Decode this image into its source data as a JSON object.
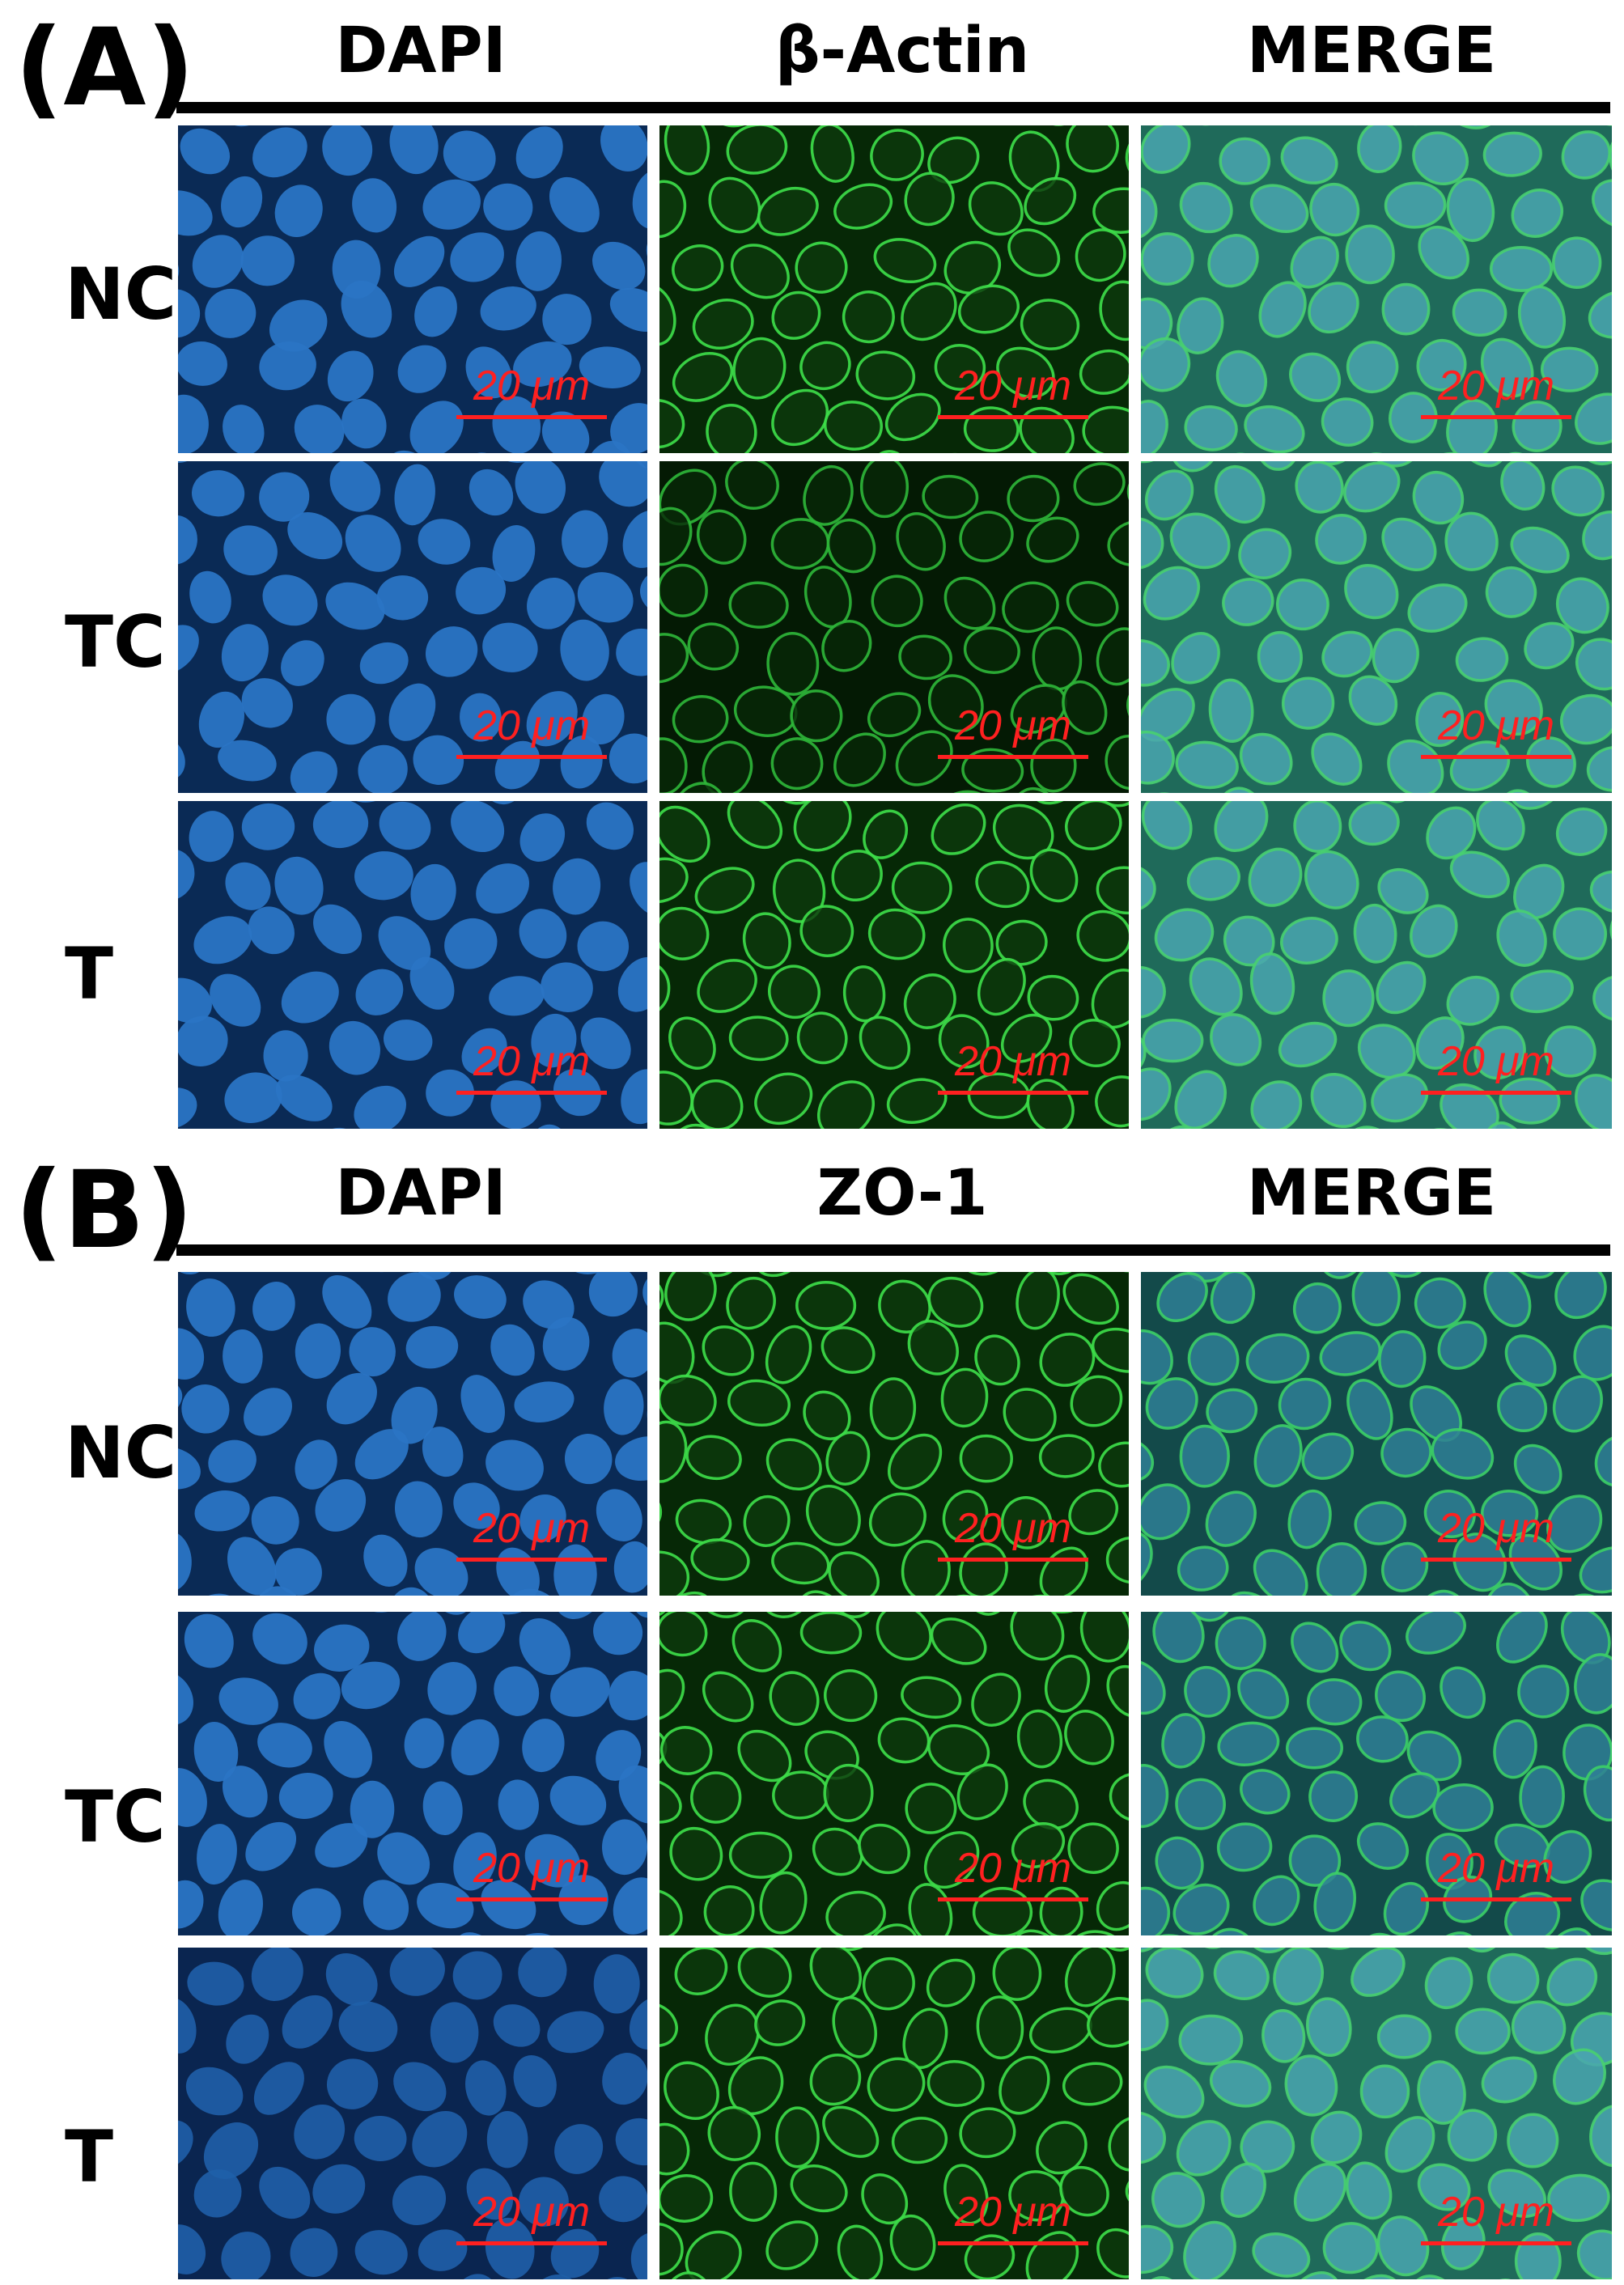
{
  "colors": {
    "dapi": "#1e5fa8",
    "green": "#20c030",
    "merge": "#3a9a8a",
    "scale": "#ff2020"
  },
  "panels": [
    {
      "letter": "(A)",
      "columns": [
        "DAPI",
        "β-Actin",
        "MERGE"
      ],
      "rows": [
        "NC",
        "TC",
        "T"
      ],
      "scale_label": "20 μm"
    },
    {
      "letter": "(B)",
      "columns": [
        "DAPI",
        "ZO-1",
        "MERGE"
      ],
      "rows": [
        "NC",
        "TC",
        "T"
      ],
      "scale_label": "20 μm"
    }
  ]
}
